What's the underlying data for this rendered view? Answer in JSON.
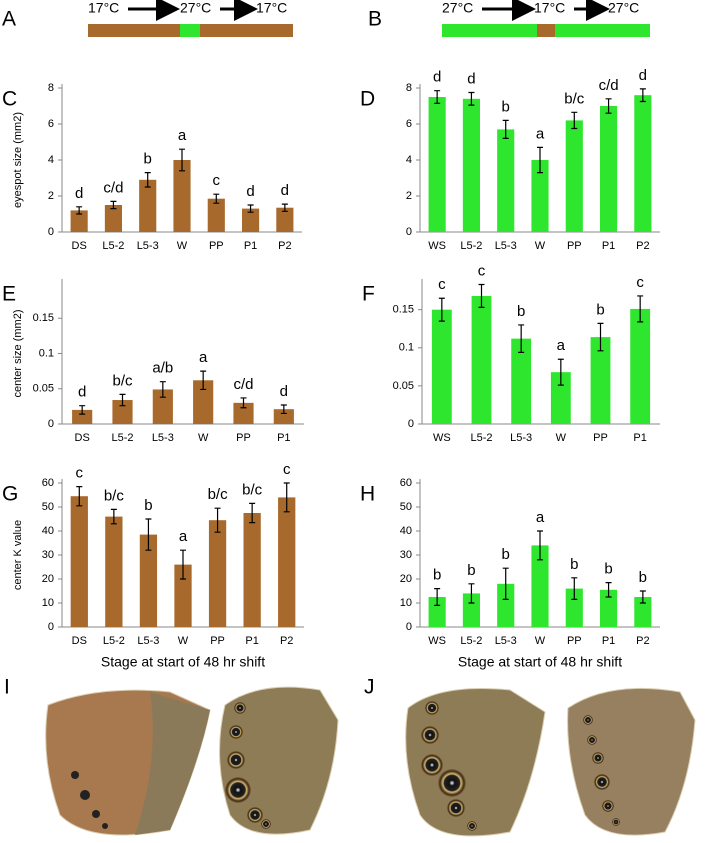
{
  "schematics": [
    {
      "panel": "A",
      "temperatures": [
        "17°C",
        "27°C",
        "17°C"
      ]
    },
    {
      "panel": "B",
      "temperatures": [
        "27°C",
        "17°C",
        "27°C"
      ]
    }
  ],
  "photo_panels": [
    "I",
    "J"
  ],
  "chart_data": [
    {
      "type": "bar",
      "panel": "C",
      "ylabel": "eyespot size (mm2)",
      "color": "#a86a2c",
      "categories": [
        "DS",
        "L5-2",
        "L5-3",
        "W",
        "PP",
        "P1",
        "P2"
      ],
      "values": [
        1.2,
        1.5,
        2.9,
        4.0,
        1.85,
        1.3,
        1.35
      ],
      "errors": [
        0.2,
        0.2,
        0.4,
        0.6,
        0.25,
        0.2,
        0.2
      ],
      "annotations": [
        "d",
        "c/d",
        "b",
        "a",
        "c",
        "d",
        "d"
      ],
      "ylim": [
        0,
        8
      ],
      "yticks": [
        0,
        2,
        4,
        6,
        8
      ]
    },
    {
      "type": "bar",
      "panel": "D",
      "color": "#2ee62e",
      "categories": [
        "WS",
        "L5-2",
        "L5-3",
        "W",
        "PP",
        "P1",
        "P2"
      ],
      "values": [
        7.5,
        7.4,
        5.7,
        4.0,
        6.2,
        7.0,
        7.6
      ],
      "errors": [
        0.35,
        0.35,
        0.5,
        0.7,
        0.45,
        0.4,
        0.35
      ],
      "annotations": [
        "d",
        "d",
        "b",
        "a",
        "b/c",
        "c/d",
        "d"
      ],
      "ylim": [
        0,
        8
      ],
      "yticks": [
        0,
        2,
        4,
        6,
        8
      ]
    },
    {
      "type": "bar",
      "panel": "E",
      "ylabel": "center size (mm2)",
      "color": "#a86a2c",
      "categories": [
        "DS",
        "L5-2",
        "L5-3",
        "W",
        "PP",
        "P1"
      ],
      "values": [
        0.02,
        0.034,
        0.049,
        0.062,
        0.03,
        0.021
      ],
      "errors": [
        0.006,
        0.008,
        0.011,
        0.013,
        0.007,
        0.006
      ],
      "annotations": [
        "d",
        "b/c",
        "a/b",
        "a",
        "c/d",
        "d"
      ],
      "ylim": [
        0,
        0.2
      ],
      "yticks": [
        0,
        0.05,
        0.1,
        0.15
      ]
    },
    {
      "type": "bar",
      "panel": "F",
      "color": "#2ee62e",
      "categories": [
        "WS",
        "L5-2",
        "L5-3",
        "W",
        "PP",
        "P1"
      ],
      "values": [
        0.15,
        0.168,
        0.112,
        0.068,
        0.114,
        0.151
      ],
      "errors": [
        0.015,
        0.015,
        0.018,
        0.017,
        0.018,
        0.017
      ],
      "annotations": [
        "c",
        "c",
        "b",
        "a",
        "b",
        "c"
      ],
      "ylim": [
        0,
        0.185
      ],
      "yticks": [
        0,
        0.05,
        0.1,
        0.15
      ]
    },
    {
      "type": "bar",
      "panel": "G",
      "ylabel": "center  K value",
      "xlabel": "Stage at start of 48 hr shift",
      "color": "#a86a2c",
      "categories": [
        "DS",
        "L5-2",
        "L5-3",
        "W",
        "PP",
        "P1",
        "P2"
      ],
      "values": [
        54.5,
        46,
        38.5,
        26,
        44.5,
        47.5,
        54
      ],
      "errors": [
        4,
        3,
        6.5,
        6,
        5,
        4,
        6
      ],
      "annotations": [
        "c",
        "b/c",
        "b",
        "a",
        "b/c",
        "b/c",
        "c"
      ],
      "ylim": [
        0,
        60
      ],
      "yticks": [
        0,
        10,
        20,
        30,
        40,
        50,
        60
      ]
    },
    {
      "type": "bar",
      "panel": "H",
      "xlabel": "Stage at start of 48 hr shift",
      "color": "#2ee62e",
      "categories": [
        "WS",
        "L5-2",
        "L5-3",
        "W",
        "PP",
        "P1",
        "P2"
      ],
      "values": [
        12.5,
        14,
        18,
        34,
        16,
        15.5,
        12.5
      ],
      "errors": [
        3.5,
        4,
        6.5,
        6,
        4.5,
        3,
        2.5
      ],
      "annotations": [
        "b",
        "b",
        "b",
        "a",
        "b",
        "b",
        "b"
      ],
      "ylim": [
        0,
        60
      ],
      "yticks": [
        0,
        10,
        20,
        30,
        40,
        50,
        60
      ]
    }
  ]
}
